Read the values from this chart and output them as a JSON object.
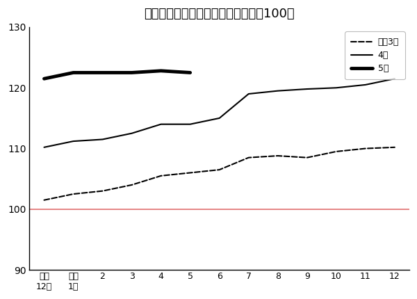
{
  "title": "農業生産資材価格指数（令和２年＝100）",
  "xlabels": [
    "前年\n12月",
    "当年\n1月",
    "2",
    "3",
    "4",
    "5",
    "6",
    "7",
    "8",
    "9",
    "10",
    "11",
    "12"
  ],
  "x_positions": [
    0,
    1,
    2,
    3,
    4,
    5,
    6,
    7,
    8,
    9,
    10,
    11,
    12
  ],
  "ylim": [
    90,
    130
  ],
  "yticks": [
    90,
    100,
    110,
    120,
    130
  ],
  "baseline": 100,
  "series": [
    {
      "label": "令和3年",
      "linestyle": "dashed",
      "linewidth": 1.5,
      "color": "#000000",
      "values": [
        101.5,
        102.5,
        103.0,
        104.0,
        105.5,
        106.0,
        106.5,
        108.5,
        108.8,
        108.5,
        109.5,
        110.0,
        110.2
      ]
    },
    {
      "label": "4年",
      "linestyle": "solid",
      "linewidth": 1.5,
      "color": "#000000",
      "values": [
        110.2,
        111.2,
        111.5,
        112.5,
        114.0,
        114.0,
        115.0,
        119.0,
        119.5,
        119.8,
        120.0,
        120.5,
        121.5
      ]
    },
    {
      "label": "5年",
      "linestyle": "solid",
      "linewidth": 3.5,
      "color": "#000000",
      "values": [
        121.5,
        122.5,
        122.5,
        122.5,
        122.8,
        122.5,
        null,
        null,
        null,
        null,
        null,
        null,
        null
      ]
    }
  ],
  "baseline_color": "#e07070",
  "background_color": "#ffffff"
}
